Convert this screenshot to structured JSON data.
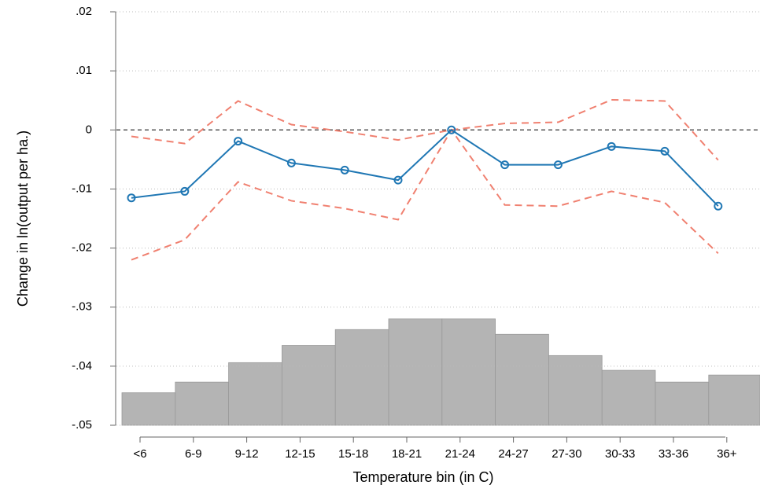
{
  "chart_data": {
    "type": "line",
    "x_label": "Temperature bin (in C)",
    "y_label": "Change in ln(output per ha.)",
    "categories": [
      "<6",
      "6-9",
      "9-12",
      "12-15",
      "15-18",
      "18-21",
      "21-24",
      "24-27",
      "27-30",
      "30-33",
      "33-36",
      "36+"
    ],
    "values": [
      -0.0115,
      -0.0104,
      -0.0019,
      -0.0056,
      -0.0068,
      -0.0085,
      0,
      -0.0059,
      -0.0059,
      -0.0028,
      -0.0036,
      -0.0129
    ],
    "color": "#1f77b4",
    "ci_upper": [
      -0.0011,
      -0.0023,
      0.0049,
      0.0009,
      -0.0003,
      -0.0017,
      0,
      0.0011,
      0.0013,
      0.0051,
      0.0049,
      -0.0051
    ],
    "ci_lower": [
      -0.022,
      -0.0186,
      -0.0088,
      -0.012,
      -0.0133,
      -0.0152,
      0,
      -0.0127,
      -0.0129,
      -0.0104,
      -0.0123,
      -0.0209
    ],
    "ci_color": "#f08070",
    "histogram": [
      -0.0445,
      -0.0427,
      -0.0394,
      -0.0365,
      -0.0338,
      -0.032,
      -0.032,
      -0.0346,
      -0.0382,
      -0.0407,
      -0.0427,
      -0.0415
    ],
    "histogram_color": "#b4b4b4",
    "ylim": [
      -0.05,
      0.02
    ],
    "yticks": [
      {
        "value": 0.02,
        "label": ".02"
      },
      {
        "value": 0.01,
        "label": ".01"
      },
      0,
      {
        "value": -0.01,
        "label": "-.01"
      },
      {
        "value": -0.02,
        "label": "-.02"
      },
      {
        "value": -0.03,
        "label": "-.03"
      },
      {
        "value": -0.04,
        "label": "-.04"
      },
      {
        "value": -0.05,
        "label": "-.05"
      }
    ],
    "grid": true
  }
}
